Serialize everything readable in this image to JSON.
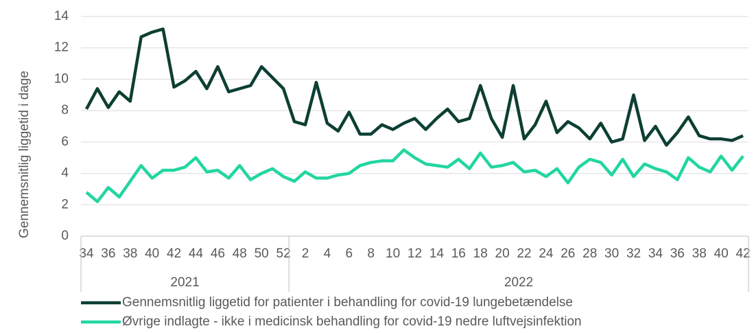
{
  "chart_data": {
    "type": "line",
    "y_label": "Gennemsnitlig liggetid i dage",
    "categories": [
      "34",
      null,
      "36",
      null,
      "38",
      null,
      "40",
      null,
      "42",
      null,
      "44",
      null,
      "46",
      null,
      "48",
      null,
      "50",
      null,
      "52",
      null,
      "2",
      null,
      "4",
      null,
      "6",
      null,
      "8",
      null,
      "10",
      null,
      "12",
      null,
      "14",
      null,
      "16",
      null,
      "18",
      null,
      "20",
      null,
      "22",
      null,
      "24",
      null,
      "26",
      null,
      "28",
      null,
      "30",
      null,
      "32",
      null,
      "34",
      null,
      "36",
      null,
      "38",
      null,
      "40",
      null,
      "42"
    ],
    "x_groups": [
      {
        "label": "2021",
        "count": 19
      },
      {
        "label": "2022",
        "count": 42
      }
    ],
    "series": [
      {
        "name": "Gennemsnitlig liggetid for patienter i behandling for covid-19 lungebetændelse",
        "color": "#0d3f33",
        "values": [
          8.1,
          9.4,
          8.2,
          9.2,
          8.6,
          12.7,
          13.0,
          13.2,
          9.5,
          9.9,
          10.5,
          9.4,
          10.8,
          9.2,
          9.4,
          9.6,
          10.8,
          10.1,
          9.4,
          7.3,
          7.1,
          9.8,
          7.2,
          6.7,
          7.9,
          6.5,
          6.5,
          7.1,
          6.8,
          7.2,
          7.5,
          6.8,
          7.5,
          8.1,
          7.3,
          7.5,
          9.6,
          7.5,
          6.3,
          9.6,
          6.2,
          7.1,
          8.6,
          6.6,
          7.3,
          6.9,
          6.2,
          7.2,
          6.0,
          6.2,
          9.0,
          6.1,
          7.0,
          5.8,
          6.6,
          7.6,
          6.4,
          6.2,
          6.2,
          6.1,
          6.4
        ]
      },
      {
        "name": "Øvrige indlagte - ikke i medicinsk behandling for covid-19 nedre luftvejsinfektion",
        "color": "#22d6a0",
        "values": [
          2.8,
          2.2,
          3.1,
          2.5,
          3.5,
          4.5,
          3.7,
          4.2,
          4.2,
          4.4,
          5.0,
          4.1,
          4.2,
          3.7,
          4.5,
          3.6,
          4.0,
          4.3,
          3.8,
          3.5,
          4.1,
          3.7,
          3.7,
          3.9,
          4.0,
          4.5,
          4.7,
          4.8,
          4.8,
          5.5,
          5.0,
          4.6,
          4.5,
          4.4,
          4.9,
          4.3,
          5.3,
          4.4,
          4.5,
          4.7,
          4.1,
          4.2,
          3.8,
          4.3,
          3.4,
          4.4,
          4.9,
          4.7,
          3.9,
          4.9,
          3.8,
          4.6,
          4.3,
          4.1,
          3.6,
          5.0,
          4.4,
          4.1,
          5.1,
          4.2,
          5.1
        ]
      }
    ],
    "ylim": [
      0,
      14
    ],
    "yticks": [
      0,
      2,
      4,
      6,
      8,
      10,
      12,
      14
    ],
    "grid": true,
    "legend": "bottom"
  }
}
